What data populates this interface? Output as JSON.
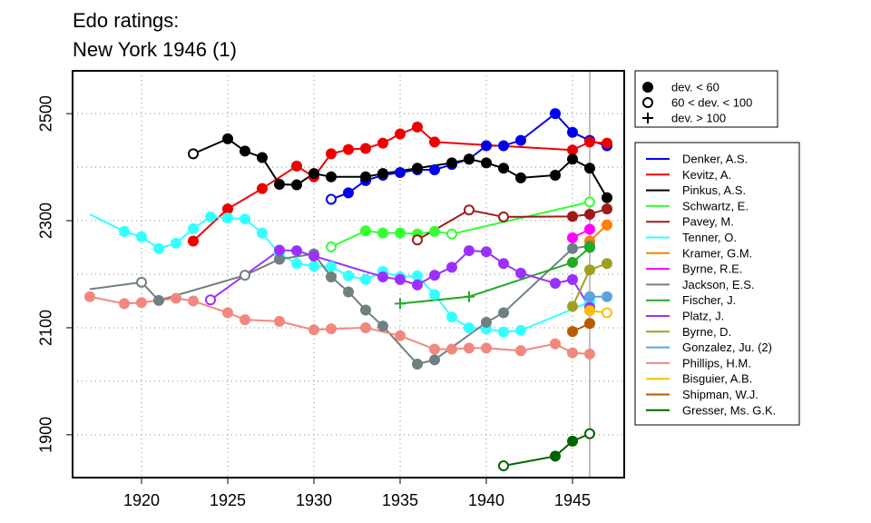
{
  "chart_data": {
    "type": "line",
    "title": "Edo ratings:",
    "subtitle": "New York 1946 (1)",
    "xlim": [
      1916,
      1948
    ],
    "ylim": [
      1820,
      2580
    ],
    "xticks": [
      1920,
      1925,
      1930,
      1935,
      1940,
      1945
    ],
    "yticks": [
      1900,
      2100,
      2300,
      2500
    ],
    "gridlines_y": [
      1900,
      2000,
      2100,
      2200,
      2300,
      2400,
      2500
    ],
    "gridlines_x": [
      1920,
      1925,
      1930,
      1935,
      1940,
      1945
    ],
    "marker_line_x": 1946,
    "grid": true,
    "marker_legend": [
      {
        "label": "dev. < 60",
        "marker": "filled"
      },
      {
        "label": "60 < dev. < 100",
        "marker": "open"
      },
      {
        "label": "dev. > 100",
        "marker": "plus"
      }
    ],
    "series": [
      {
        "name": "Denker, A.S.",
        "color": "#0000ee",
        "points": [
          {
            "x": 1931,
            "y": 2340,
            "m": "o"
          },
          {
            "x": 1932,
            "y": 2352,
            "m": "f"
          },
          {
            "x": 1933,
            "y": 2375,
            "m": "f"
          },
          {
            "x": 1934,
            "y": 2385,
            "m": "f"
          },
          {
            "x": 1935,
            "y": 2390,
            "m": "f"
          },
          {
            "x": 1936,
            "y": 2395,
            "m": "f"
          },
          {
            "x": 1937,
            "y": 2395,
            "m": "f"
          },
          {
            "x": 1938,
            "y": 2405,
            "m": "f"
          },
          {
            "x": 1939,
            "y": 2415,
            "m": "f"
          },
          {
            "x": 1940,
            "y": 2440,
            "m": "f"
          },
          {
            "x": 1941,
            "y": 2440,
            "m": "f"
          },
          {
            "x": 1942,
            "y": 2450,
            "m": "f"
          },
          {
            "x": 1944,
            "y": 2500,
            "m": "f"
          },
          {
            "x": 1945,
            "y": 2465,
            "m": "f"
          },
          {
            "x": 1946,
            "y": 2450,
            "m": "f"
          },
          {
            "x": 1947,
            "y": 2440,
            "m": "f"
          }
        ]
      },
      {
        "name": "Kevitz, A.",
        "color": "#ee0000",
        "points": [
          {
            "x": 1923,
            "y": 2262,
            "m": "f"
          },
          {
            "x": 1925,
            "y": 2322,
            "m": "f"
          },
          {
            "x": 1927,
            "y": 2360,
            "m": "f"
          },
          {
            "x": 1929,
            "y": 2402,
            "m": "f"
          },
          {
            "x": 1930,
            "y": 2382,
            "m": "f"
          },
          {
            "x": 1931,
            "y": 2425,
            "m": "f"
          },
          {
            "x": 1932,
            "y": 2433,
            "m": "f"
          },
          {
            "x": 1933,
            "y": 2435,
            "m": "f"
          },
          {
            "x": 1934,
            "y": 2445,
            "m": "f"
          },
          {
            "x": 1935,
            "y": 2462,
            "m": "f"
          },
          {
            "x": 1936,
            "y": 2475,
            "m": "f"
          },
          {
            "x": 1937,
            "y": 2447,
            "m": "f"
          },
          {
            "x": 1945,
            "y": 2432,
            "m": "f"
          },
          {
            "x": 1946,
            "y": 2447,
            "m": "f"
          },
          {
            "x": 1947,
            "y": 2445,
            "m": "f"
          }
        ]
      },
      {
        "name": "Pinkus, A.S.",
        "color": "#000000",
        "points": [
          {
            "x": 1923,
            "y": 2425,
            "m": "o"
          },
          {
            "x": 1925,
            "y": 2453,
            "m": "f"
          },
          {
            "x": 1926,
            "y": 2430,
            "m": "f"
          },
          {
            "x": 1927,
            "y": 2418,
            "m": "f"
          },
          {
            "x": 1928,
            "y": 2368,
            "m": "f"
          },
          {
            "x": 1929,
            "y": 2367,
            "m": "f"
          },
          {
            "x": 1930,
            "y": 2388,
            "m": "f"
          },
          {
            "x": 1931,
            "y": 2382,
            "m": "f"
          },
          {
            "x": 1933,
            "y": 2382,
            "m": "f"
          },
          {
            "x": 1934,
            "y": 2388,
            "m": "f"
          },
          {
            "x": 1936,
            "y": 2398,
            "m": "f"
          },
          {
            "x": 1938,
            "y": 2408,
            "m": "f"
          },
          {
            "x": 1939,
            "y": 2415,
            "m": "f"
          },
          {
            "x": 1940,
            "y": 2408,
            "m": "f"
          },
          {
            "x": 1941,
            "y": 2398,
            "m": "f"
          },
          {
            "x": 1942,
            "y": 2380,
            "m": "f"
          },
          {
            "x": 1944,
            "y": 2385,
            "m": "f"
          },
          {
            "x": 1945,
            "y": 2415,
            "m": "f"
          },
          {
            "x": 1946,
            "y": 2398,
            "m": "f"
          },
          {
            "x": 1947,
            "y": 2343,
            "m": "f"
          }
        ]
      },
      {
        "name": "Schwartz, E.",
        "color": "#33ff33",
        "points": [
          {
            "x": 1931,
            "y": 2251,
            "m": "o"
          },
          {
            "x": 1933,
            "y": 2281,
            "m": "f"
          },
          {
            "x": 1934,
            "y": 2277,
            "m": "f"
          },
          {
            "x": 1935,
            "y": 2277,
            "m": "f"
          },
          {
            "x": 1936,
            "y": 2275,
            "m": "f"
          },
          {
            "x": 1937,
            "y": 2280,
            "m": "f"
          },
          {
            "x": 1938,
            "y": 2275,
            "m": "o"
          },
          {
            "x": 1946,
            "y": 2335,
            "m": "o"
          }
        ]
      },
      {
        "name": "Pavey, M.",
        "color": "#a01a1a",
        "points": [
          {
            "x": 1936,
            "y": 2264,
            "m": "o"
          },
          {
            "x": 1939,
            "y": 2320,
            "m": "o"
          },
          {
            "x": 1941,
            "y": 2307,
            "m": "o"
          },
          {
            "x": 1945,
            "y": 2308,
            "m": "f"
          },
          {
            "x": 1946,
            "y": 2312,
            "m": "f"
          },
          {
            "x": 1947,
            "y": 2322,
            "m": "f"
          }
        ]
      },
      {
        "name": "Tenner, O.",
        "color": "#33ffff",
        "points": [
          {
            "x": 1917,
            "y": 2312,
            "m": "n"
          },
          {
            "x": 1919,
            "y": 2280,
            "m": "f"
          },
          {
            "x": 1920,
            "y": 2270,
            "m": "f"
          },
          {
            "x": 1921,
            "y": 2248,
            "m": "f"
          },
          {
            "x": 1922,
            "y": 2258,
            "m": "f"
          },
          {
            "x": 1923,
            "y": 2285,
            "m": "f"
          },
          {
            "x": 1924,
            "y": 2307,
            "m": "f"
          },
          {
            "x": 1925,
            "y": 2305,
            "m": "f"
          },
          {
            "x": 1926,
            "y": 2303,
            "m": "f"
          },
          {
            "x": 1927,
            "y": 2277,
            "m": "f"
          },
          {
            "x": 1928,
            "y": 2238,
            "m": "f"
          },
          {
            "x": 1929,
            "y": 2220,
            "m": "f"
          },
          {
            "x": 1930,
            "y": 2215,
            "m": "f"
          },
          {
            "x": 1931,
            "y": 2214,
            "m": "f"
          },
          {
            "x": 1932,
            "y": 2197,
            "m": "f"
          },
          {
            "x": 1933,
            "y": 2190,
            "m": "f"
          },
          {
            "x": 1934,
            "y": 2205,
            "m": "f"
          },
          {
            "x": 1935,
            "y": 2195,
            "m": "f"
          },
          {
            "x": 1936,
            "y": 2197,
            "m": "f"
          },
          {
            "x": 1937,
            "y": 2162,
            "m": "f"
          },
          {
            "x": 1938,
            "y": 2120,
            "m": "f"
          },
          {
            "x": 1939,
            "y": 2100,
            "m": "f"
          },
          {
            "x": 1940,
            "y": 2098,
            "m": "f"
          },
          {
            "x": 1941,
            "y": 2092,
            "m": "f"
          },
          {
            "x": 1942,
            "y": 2095,
            "m": "f"
          },
          {
            "x": 1946,
            "y": 2148,
            "m": "f"
          }
        ]
      },
      {
        "name": "Kramer, G.M.",
        "color": "#ff8000",
        "points": [
          {
            "x": 1946,
            "y": 2262,
            "m": "f"
          },
          {
            "x": 1947,
            "y": 2292,
            "m": "f"
          }
        ]
      },
      {
        "name": "Byrne, R.E.",
        "color": "#ff00ff",
        "points": [
          {
            "x": 1945,
            "y": 2268,
            "m": "f"
          },
          {
            "x": 1946,
            "y": 2284,
            "m": "f"
          }
        ]
      },
      {
        "name": "Jackson, E.S.",
        "color": "#708080",
        "points": [
          {
            "x": 1917,
            "y": 2172,
            "m": "n"
          },
          {
            "x": 1920,
            "y": 2185,
            "m": "o"
          },
          {
            "x": 1921,
            "y": 2151,
            "m": "f"
          },
          {
            "x": 1926,
            "y": 2198,
            "m": "o"
          },
          {
            "x": 1928,
            "y": 2228,
            "m": "f"
          },
          {
            "x": 1930,
            "y": 2238,
            "m": "f"
          },
          {
            "x": 1931,
            "y": 2195,
            "m": "f"
          },
          {
            "x": 1932,
            "y": 2167,
            "m": "f"
          },
          {
            "x": 1933,
            "y": 2133,
            "m": "f"
          },
          {
            "x": 1934,
            "y": 2103,
            "m": "f"
          },
          {
            "x": 1936,
            "y": 2032,
            "m": "f"
          },
          {
            "x": 1937,
            "y": 2040,
            "m": "f"
          },
          {
            "x": 1940,
            "y": 2110,
            "m": "f"
          },
          {
            "x": 1941,
            "y": 2128,
            "m": "f"
          },
          {
            "x": 1945,
            "y": 2248,
            "m": "f"
          },
          {
            "x": 1946,
            "y": 2253,
            "m": "f"
          }
        ]
      },
      {
        "name": "Fischer, J.",
        "color": "#22aa22",
        "points": [
          {
            "x": 1935,
            "y": 2145,
            "m": "p"
          },
          {
            "x": 1939,
            "y": 2158,
            "m": "p"
          },
          {
            "x": 1945,
            "y": 2222,
            "m": "f"
          },
          {
            "x": 1946,
            "y": 2250,
            "m": "f"
          }
        ]
      },
      {
        "name": "Platz, J.",
        "color": "#9b30ff",
        "points": [
          {
            "x": 1924,
            "y": 2152,
            "m": "o"
          },
          {
            "x": 1928,
            "y": 2245,
            "m": "f"
          },
          {
            "x": 1929,
            "y": 2244,
            "m": "f"
          },
          {
            "x": 1930,
            "y": 2234,
            "m": "f"
          },
          {
            "x": 1934,
            "y": 2195,
            "m": "f"
          },
          {
            "x": 1935,
            "y": 2190,
            "m": "f"
          },
          {
            "x": 1936,
            "y": 2180,
            "m": "f"
          },
          {
            "x": 1937,
            "y": 2198,
            "m": "f"
          },
          {
            "x": 1938,
            "y": 2213,
            "m": "f"
          },
          {
            "x": 1939,
            "y": 2244,
            "m": "f"
          },
          {
            "x": 1940,
            "y": 2242,
            "m": "f"
          },
          {
            "x": 1941,
            "y": 2220,
            "m": "f"
          },
          {
            "x": 1942,
            "y": 2202,
            "m": "f"
          },
          {
            "x": 1944,
            "y": 2183,
            "m": "f"
          },
          {
            "x": 1945,
            "y": 2190,
            "m": "f"
          },
          {
            "x": 1946,
            "y": 2138,
            "m": "f"
          }
        ]
      },
      {
        "name": "Byrne, D.",
        "color": "#a0a020",
        "points": [
          {
            "x": 1945,
            "y": 2140,
            "m": "f"
          },
          {
            "x": 1946,
            "y": 2208,
            "m": "f"
          },
          {
            "x": 1947,
            "y": 2220,
            "m": "f"
          }
        ]
      },
      {
        "name": "Gonzalez, Ju. (2)",
        "color": "#5ba3e0",
        "points": [
          {
            "x": 1946,
            "y": 2158,
            "m": "f"
          },
          {
            "x": 1947,
            "y": 2158,
            "m": "f"
          }
        ]
      },
      {
        "name": "Phillips, H.M.",
        "color": "#f08880",
        "points": [
          {
            "x": 1917,
            "y": 2158,
            "m": "f"
          },
          {
            "x": 1919,
            "y": 2145,
            "m": "f"
          },
          {
            "x": 1920,
            "y": 2147,
            "m": "f"
          },
          {
            "x": 1922,
            "y": 2155,
            "m": "f"
          },
          {
            "x": 1923,
            "y": 2150,
            "m": "f"
          },
          {
            "x": 1925,
            "y": 2128,
            "m": "f"
          },
          {
            "x": 1926,
            "y": 2115,
            "m": "f"
          },
          {
            "x": 1928,
            "y": 2112,
            "m": "f"
          },
          {
            "x": 1930,
            "y": 2096,
            "m": "f"
          },
          {
            "x": 1931,
            "y": 2098,
            "m": "f"
          },
          {
            "x": 1933,
            "y": 2100,
            "m": "f"
          },
          {
            "x": 1935,
            "y": 2085,
            "m": "f"
          },
          {
            "x": 1937,
            "y": 2060,
            "m": "f"
          },
          {
            "x": 1938,
            "y": 2060,
            "m": "f"
          },
          {
            "x": 1939,
            "y": 2062,
            "m": "f"
          },
          {
            "x": 1940,
            "y": 2062,
            "m": "f"
          },
          {
            "x": 1942,
            "y": 2057,
            "m": "f"
          },
          {
            "x": 1944,
            "y": 2070,
            "m": "f"
          },
          {
            "x": 1945,
            "y": 2053,
            "m": "f"
          },
          {
            "x": 1946,
            "y": 2051,
            "m": "f"
          }
        ]
      },
      {
        "name": "Bisguier, A.B.",
        "color": "#f5c000",
        "points": [
          {
            "x": 1946,
            "y": 2132,
            "m": "f"
          },
          {
            "x": 1947,
            "y": 2128,
            "m": "o"
          }
        ]
      },
      {
        "name": "Shipman, W.J.",
        "color": "#b85c00",
        "points": [
          {
            "x": 1945,
            "y": 2093,
            "m": "f"
          },
          {
            "x": 1946,
            "y": 2108,
            "m": "f"
          }
        ]
      },
      {
        "name": "Gresser, Ms. G.K.",
        "color": "#006400",
        "points": [
          {
            "x": 1941,
            "y": 1842,
            "m": "o"
          },
          {
            "x": 1944,
            "y": 1860,
            "m": "f"
          },
          {
            "x": 1945,
            "y": 1888,
            "m": "f"
          },
          {
            "x": 1946,
            "y": 1902,
            "m": "o"
          }
        ]
      }
    ]
  }
}
